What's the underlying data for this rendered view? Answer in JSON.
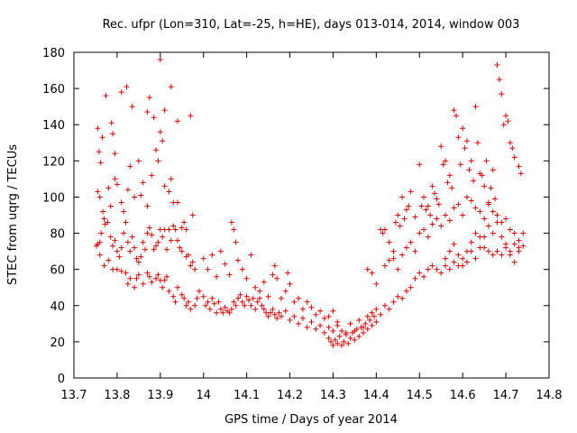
{
  "chart_data": {
    "type": "scatter",
    "title": "Rec. ufpr (Lon=310, Lat=-25, h=HE), days 013-014, 2014, window 003",
    "xlabel": "GPS time / Days of year 2014",
    "ylabel": "STEC from uqrg / TECUs",
    "xlim": [
      13.7,
      14.8
    ],
    "ylim": [
      0,
      180
    ],
    "xticks": [
      13.7,
      13.8,
      13.9,
      14.0,
      14.1,
      14.2,
      14.3,
      14.4,
      14.5,
      14.6,
      14.7,
      14.8
    ],
    "xtick_labels": [
      "13.7",
      "13.8",
      "13.9",
      "14",
      "14.1",
      "14.2",
      "14.3",
      "14.4",
      "14.5",
      "14.6",
      "14.7",
      "14.8"
    ],
    "yticks": [
      0,
      20,
      40,
      60,
      80,
      100,
      120,
      140,
      160,
      180
    ],
    "ytick_labels": [
      "0",
      "20",
      "40",
      "60",
      "80",
      "100",
      "120",
      "140",
      "160",
      "180"
    ],
    "grid": false,
    "marker": "+",
    "color": "#dd0000",
    "points": [
      [
        13.755,
        138
      ],
      [
        13.758,
        125
      ],
      [
        13.762,
        119
      ],
      [
        13.766,
        133
      ],
      [
        13.774,
        156
      ],
      [
        13.787,
        141
      ],
      [
        13.79,
        135
      ],
      [
        13.795,
        124
      ],
      [
        13.81,
        158
      ],
      [
        13.822,
        161
      ],
      [
        13.835,
        150
      ],
      [
        13.85,
        120
      ],
      [
        13.87,
        147
      ],
      [
        13.875,
        155
      ],
      [
        13.885,
        144
      ],
      [
        13.9,
        176
      ],
      [
        13.91,
        148
      ],
      [
        13.925,
        161
      ],
      [
        13.94,
        142
      ],
      [
        13.97,
        145
      ],
      [
        13.755,
        103
      ],
      [
        13.76,
        100
      ],
      [
        13.77,
        88
      ],
      [
        13.78,
        105
      ],
      [
        13.785,
        95
      ],
      [
        13.795,
        110
      ],
      [
        13.8,
        107
      ],
      [
        13.81,
        97
      ],
      [
        13.815,
        92
      ],
      [
        13.825,
        104
      ],
      [
        13.83,
        117
      ],
      [
        13.84,
        100
      ],
      [
        13.855,
        101
      ],
      [
        13.86,
        108
      ],
      [
        13.87,
        95
      ],
      [
        13.88,
        112
      ],
      [
        13.89,
        126
      ],
      [
        13.895,
        120
      ],
      [
        13.9,
        136
      ],
      [
        13.905,
        131
      ],
      [
        13.91,
        106
      ],
      [
        13.92,
        103
      ],
      [
        13.925,
        110
      ],
      [
        13.93,
        97
      ],
      [
        13.94,
        97
      ],
      [
        13.95,
        83
      ],
      [
        13.96,
        82
      ],
      [
        13.975,
        90
      ],
      [
        13.752,
        73
      ],
      [
        13.755,
        74
      ],
      [
        13.76,
        75
      ],
      [
        13.763,
        80
      ],
      [
        13.767,
        92
      ],
      [
        13.772,
        85
      ],
      [
        13.778,
        86
      ],
      [
        13.785,
        78
      ],
      [
        13.79,
        73
      ],
      [
        13.795,
        76
      ],
      [
        13.8,
        70
      ],
      [
        13.805,
        67
      ],
      [
        13.81,
        72
      ],
      [
        13.815,
        80
      ],
      [
        13.82,
        86
      ],
      [
        13.825,
        75
      ],
      [
        13.83,
        70
      ],
      [
        13.835,
        78
      ],
      [
        13.84,
        72
      ],
      [
        13.845,
        66
      ],
      [
        13.85,
        64
      ],
      [
        13.855,
        67
      ],
      [
        13.86,
        75
      ],
      [
        13.865,
        71
      ],
      [
        13.87,
        80
      ],
      [
        13.875,
        83
      ],
      [
        13.88,
        79
      ],
      [
        13.885,
        71
      ],
      [
        13.89,
        73
      ],
      [
        13.895,
        75
      ],
      [
        13.9,
        82
      ],
      [
        13.905,
        78
      ],
      [
        13.91,
        82
      ],
      [
        13.915,
        71
      ],
      [
        13.92,
        82
      ],
      [
        13.925,
        76
      ],
      [
        13.93,
        84
      ],
      [
        13.935,
        82
      ],
      [
        13.94,
        76
      ],
      [
        13.945,
        72
      ],
      [
        13.95,
        70
      ],
      [
        13.955,
        86
      ],
      [
        13.96,
        67
      ],
      [
        13.965,
        68
      ],
      [
        13.97,
        62
      ],
      [
        13.975,
        64
      ],
      [
        13.98,
        60
      ],
      [
        13.76,
        68
      ],
      [
        13.77,
        62
      ],
      [
        13.78,
        65
      ],
      [
        13.79,
        60
      ],
      [
        13.8,
        60
      ],
      [
        13.81,
        59
      ],
      [
        13.82,
        58
      ],
      [
        13.825,
        52
      ],
      [
        13.83,
        55
      ],
      [
        13.84,
        50
      ],
      [
        13.845,
        55
      ],
      [
        13.85,
        57
      ],
      [
        13.86,
        52
      ],
      [
        13.87,
        58
      ],
      [
        13.875,
        56
      ],
      [
        13.88,
        53
      ],
      [
        13.89,
        55
      ],
      [
        13.895,
        57
      ],
      [
        13.9,
        54
      ],
      [
        13.905,
        50
      ],
      [
        13.91,
        54
      ],
      [
        13.915,
        56
      ],
      [
        13.92,
        48
      ],
      [
        13.93,
        45
      ],
      [
        13.935,
        42
      ],
      [
        13.94,
        50
      ],
      [
        13.95,
        46
      ],
      [
        13.955,
        44
      ],
      [
        13.96,
        40
      ],
      [
        13.965,
        42
      ],
      [
        13.97,
        38
      ],
      [
        13.98,
        40
      ],
      [
        13.985,
        44
      ],
      [
        13.99,
        48
      ],
      [
        14.0,
        66
      ],
      [
        14.01,
        60
      ],
      [
        14.02,
        68
      ],
      [
        14.03,
        56
      ],
      [
        14.04,
        70
      ],
      [
        14.05,
        63
      ],
      [
        14.06,
        57
      ],
      [
        14.065,
        86
      ],
      [
        14.07,
        82
      ],
      [
        14.075,
        75
      ],
      [
        14.08,
        65
      ],
      [
        14.09,
        60
      ],
      [
        14.1,
        55
      ],
      [
        14.11,
        68
      ],
      [
        14.12,
        50
      ],
      [
        14.13,
        48
      ],
      [
        14.14,
        53
      ],
      [
        14.15,
        45
      ],
      [
        14.16,
        57
      ],
      [
        14.165,
        62
      ],
      [
        14.17,
        55
      ],
      [
        14.18,
        44
      ],
      [
        14.19,
        48
      ],
      [
        14.195,
        58
      ],
      [
        14.2,
        52
      ],
      [
        14.21,
        42
      ],
      [
        14.22,
        44
      ],
      [
        14.23,
        38
      ],
      [
        14.24,
        42
      ],
      [
        14.25,
        39
      ],
      [
        14.26,
        35
      ],
      [
        14.27,
        37
      ],
      [
        14.28,
        33
      ],
      [
        14.29,
        34
      ],
      [
        14.3,
        37
      ],
      [
        14.31,
        31
      ],
      [
        14.0,
        45
      ],
      [
        14.005,
        40
      ],
      [
        14.01,
        42
      ],
      [
        14.015,
        38
      ],
      [
        14.02,
        44
      ],
      [
        14.025,
        41
      ],
      [
        14.03,
        36
      ],
      [
        14.035,
        42
      ],
      [
        14.04,
        38
      ],
      [
        14.045,
        36
      ],
      [
        14.05,
        39
      ],
      [
        14.055,
        37
      ],
      [
        14.06,
        36
      ],
      [
        14.065,
        38
      ],
      [
        14.07,
        42
      ],
      [
        14.075,
        40
      ],
      [
        14.08,
        44
      ],
      [
        14.085,
        46
      ],
      [
        14.09,
        42
      ],
      [
        14.095,
        40
      ],
      [
        14.1,
        45
      ],
      [
        14.105,
        43
      ],
      [
        14.11,
        40
      ],
      [
        14.115,
        44
      ],
      [
        14.12,
        38
      ],
      [
        14.125,
        42
      ],
      [
        14.13,
        44
      ],
      [
        14.135,
        40
      ],
      [
        14.14,
        38
      ],
      [
        14.145,
        36
      ],
      [
        14.15,
        34
      ],
      [
        14.155,
        36
      ],
      [
        14.16,
        38
      ],
      [
        14.165,
        35
      ],
      [
        14.17,
        33
      ],
      [
        14.175,
        36
      ],
      [
        14.18,
        34
      ],
      [
        14.19,
        37
      ],
      [
        14.2,
        32
      ],
      [
        14.21,
        34
      ],
      [
        14.22,
        30
      ],
      [
        14.23,
        33
      ],
      [
        14.24,
        28
      ],
      [
        14.25,
        31
      ],
      [
        14.26,
        27
      ],
      [
        14.27,
        29
      ],
      [
        14.28,
        25
      ],
      [
        14.29,
        28
      ],
      [
        14.29,
        22
      ],
      [
        14.295,
        20
      ],
      [
        14.3,
        18
      ],
      [
        14.305,
        21
      ],
      [
        14.31,
        19
      ],
      [
        14.315,
        23
      ],
      [
        14.32,
        18
      ],
      [
        14.325,
        20
      ],
      [
        14.33,
        24
      ],
      [
        14.335,
        19
      ],
      [
        14.34,
        22
      ],
      [
        14.345,
        25
      ],
      [
        14.35,
        21
      ],
      [
        14.355,
        27
      ],
      [
        14.36,
        23
      ],
      [
        14.365,
        28
      ],
      [
        14.37,
        25
      ],
      [
        14.375,
        30
      ],
      [
        14.38,
        27
      ],
      [
        14.385,
        32
      ],
      [
        14.39,
        29
      ],
      [
        14.395,
        34
      ],
      [
        14.4,
        31
      ],
      [
        14.3,
        26
      ],
      [
        14.31,
        29
      ],
      [
        14.32,
        26
      ],
      [
        14.33,
        25
      ],
      [
        14.34,
        30
      ],
      [
        14.35,
        26
      ],
      [
        14.36,
        32
      ],
      [
        14.37,
        28
      ],
      [
        14.38,
        34
      ],
      [
        14.39,
        36
      ],
      [
        14.4,
        38
      ],
      [
        14.41,
        35
      ],
      [
        14.42,
        40
      ],
      [
        14.43,
        38
      ],
      [
        14.44,
        42
      ],
      [
        14.45,
        45
      ],
      [
        14.46,
        44
      ],
      [
        14.47,
        48
      ],
      [
        14.48,
        50
      ],
      [
        14.49,
        55
      ],
      [
        14.5,
        58
      ],
      [
        14.51,
        56
      ],
      [
        14.52,
        60
      ],
      [
        14.53,
        62
      ],
      [
        14.54,
        60
      ],
      [
        14.55,
        58
      ],
      [
        14.56,
        62
      ],
      [
        14.57,
        60
      ],
      [
        14.58,
        64
      ],
      [
        14.59,
        62
      ],
      [
        14.6,
        66
      ],
      [
        14.61,
        70
      ],
      [
        14.62,
        75
      ],
      [
        14.63,
        80
      ],
      [
        14.64,
        78
      ],
      [
        14.65,
        72
      ],
      [
        14.66,
        70
      ],
      [
        14.67,
        68
      ],
      [
        14.68,
        70
      ],
      [
        14.69,
        68
      ],
      [
        14.7,
        72
      ],
      [
        14.71,
        70
      ],
      [
        14.72,
        74
      ],
      [
        14.73,
        72
      ],
      [
        14.38,
        60
      ],
      [
        14.39,
        58
      ],
      [
        14.4,
        52
      ],
      [
        14.41,
        82
      ],
      [
        14.415,
        80
      ],
      [
        14.42,
        82
      ],
      [
        14.43,
        75
      ],
      [
        14.44,
        70
      ],
      [
        14.445,
        86
      ],
      [
        14.45,
        90
      ],
      [
        14.455,
        84
      ],
      [
        14.46,
        100
      ],
      [
        14.465,
        88
      ],
      [
        14.47,
        93
      ],
      [
        14.475,
        95
      ],
      [
        14.48,
        103
      ],
      [
        14.49,
        89
      ],
      [
        14.5,
        118
      ],
      [
        14.505,
        95
      ],
      [
        14.51,
        100
      ],
      [
        14.515,
        93
      ],
      [
        14.52,
        95
      ],
      [
        14.525,
        90
      ],
      [
        14.53,
        106
      ],
      [
        14.535,
        102
      ],
      [
        14.54,
        99
      ],
      [
        14.545,
        96
      ],
      [
        14.55,
        128
      ],
      [
        14.555,
        118
      ],
      [
        14.56,
        120
      ],
      [
        14.565,
        108
      ],
      [
        14.57,
        112
      ],
      [
        14.575,
        105
      ],
      [
        14.58,
        148
      ],
      [
        14.585,
        145
      ],
      [
        14.59,
        133
      ],
      [
        14.595,
        118
      ],
      [
        14.6,
        138
      ],
      [
        14.605,
        127
      ],
      [
        14.61,
        131
      ],
      [
        14.615,
        115
      ],
      [
        14.62,
        120
      ],
      [
        14.625,
        109
      ],
      [
        14.63,
        150
      ],
      [
        14.635,
        130
      ],
      [
        14.64,
        113
      ],
      [
        14.645,
        112
      ],
      [
        14.65,
        106
      ],
      [
        14.655,
        120
      ],
      [
        14.66,
        97
      ],
      [
        14.665,
        105
      ],
      [
        14.67,
        115
      ],
      [
        14.675,
        99
      ],
      [
        14.68,
        173
      ],
      [
        14.685,
        165
      ],
      [
        14.69,
        157
      ],
      [
        14.695,
        140
      ],
      [
        14.7,
        145
      ],
      [
        14.705,
        142
      ],
      [
        14.71,
        130
      ],
      [
        14.715,
        127
      ],
      [
        14.72,
        122
      ],
      [
        14.73,
        117
      ],
      [
        14.735,
        113
      ],
      [
        14.42,
        62
      ],
      [
        14.43,
        65
      ],
      [
        14.44,
        66
      ],
      [
        14.45,
        60
      ],
      [
        14.46,
        68
      ],
      [
        14.47,
        72
      ],
      [
        14.48,
        75
      ],
      [
        14.49,
        70
      ],
      [
        14.5,
        80
      ],
      [
        14.51,
        82
      ],
      [
        14.52,
        78
      ],
      [
        14.53,
        85
      ],
      [
        14.54,
        88
      ],
      [
        14.55,
        84
      ],
      [
        14.56,
        90
      ],
      [
        14.57,
        87
      ],
      [
        14.58,
        94
      ],
      [
        14.59,
        96
      ],
      [
        14.6,
        90
      ],
      [
        14.61,
        100
      ],
      [
        14.62,
        98
      ],
      [
        14.63,
        94
      ],
      [
        14.64,
        92
      ],
      [
        14.65,
        88
      ],
      [
        14.66,
        96
      ],
      [
        14.67,
        92
      ],
      [
        14.68,
        90
      ],
      [
        14.69,
        86
      ],
      [
        14.7,
        88
      ],
      [
        14.71,
        82
      ],
      [
        14.72,
        80
      ],
      [
        14.73,
        76
      ],
      [
        14.74,
        80
      ],
      [
        14.56,
        66
      ],
      [
        14.57,
        70
      ],
      [
        14.58,
        74
      ],
      [
        14.59,
        68
      ],
      [
        14.6,
        62
      ],
      [
        14.61,
        64
      ],
      [
        14.62,
        70
      ],
      [
        14.63,
        66
      ],
      [
        14.64,
        72
      ],
      [
        14.65,
        78
      ],
      [
        14.66,
        84
      ],
      [
        14.67,
        80
      ],
      [
        14.68,
        86
      ],
      [
        14.69,
        78
      ],
      [
        14.7,
        74
      ],
      [
        14.71,
        68
      ],
      [
        14.72,
        64
      ],
      [
        14.73,
        70
      ],
      [
        14.74,
        73
      ]
    ]
  }
}
